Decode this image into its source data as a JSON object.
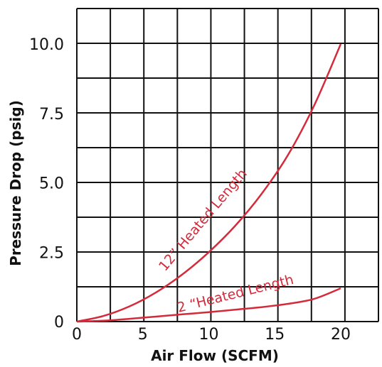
{
  "colors": {
    "grid": "#111111",
    "series": "#d42a3a",
    "text": "#111111"
  },
  "chart_data": {
    "type": "line",
    "title": "",
    "xlabel": "Air Flow (SCFM)",
    "ylabel": "Pressure Drop (psig)",
    "xlim": [
      0,
      22
    ],
    "ylim": [
      0,
      12
    ],
    "x_ticks": [
      "0",
      "5",
      "10",
      "15",
      "20"
    ],
    "y_ticks": [
      "0",
      "2.5",
      "5.0",
      "7.5",
      "10.0"
    ],
    "grid": true,
    "legend": "none",
    "series": [
      {
        "name": "12” Heated Length",
        "x": [
          0,
          2,
          4,
          6,
          8,
          10,
          12,
          14,
          16,
          18,
          20
        ],
        "y": [
          0,
          0.2,
          0.55,
          1.05,
          1.7,
          2.5,
          3.45,
          4.6,
          6.0,
          7.8,
          10.0
        ]
      },
      {
        "name": "2 “Heated Length",
        "x": [
          0,
          2,
          4,
          6,
          8,
          10,
          12,
          14,
          16,
          18,
          20
        ],
        "y": [
          0,
          0.03,
          0.1,
          0.18,
          0.26,
          0.34,
          0.43,
          0.52,
          0.64,
          0.82,
          1.2
        ]
      }
    ]
  }
}
